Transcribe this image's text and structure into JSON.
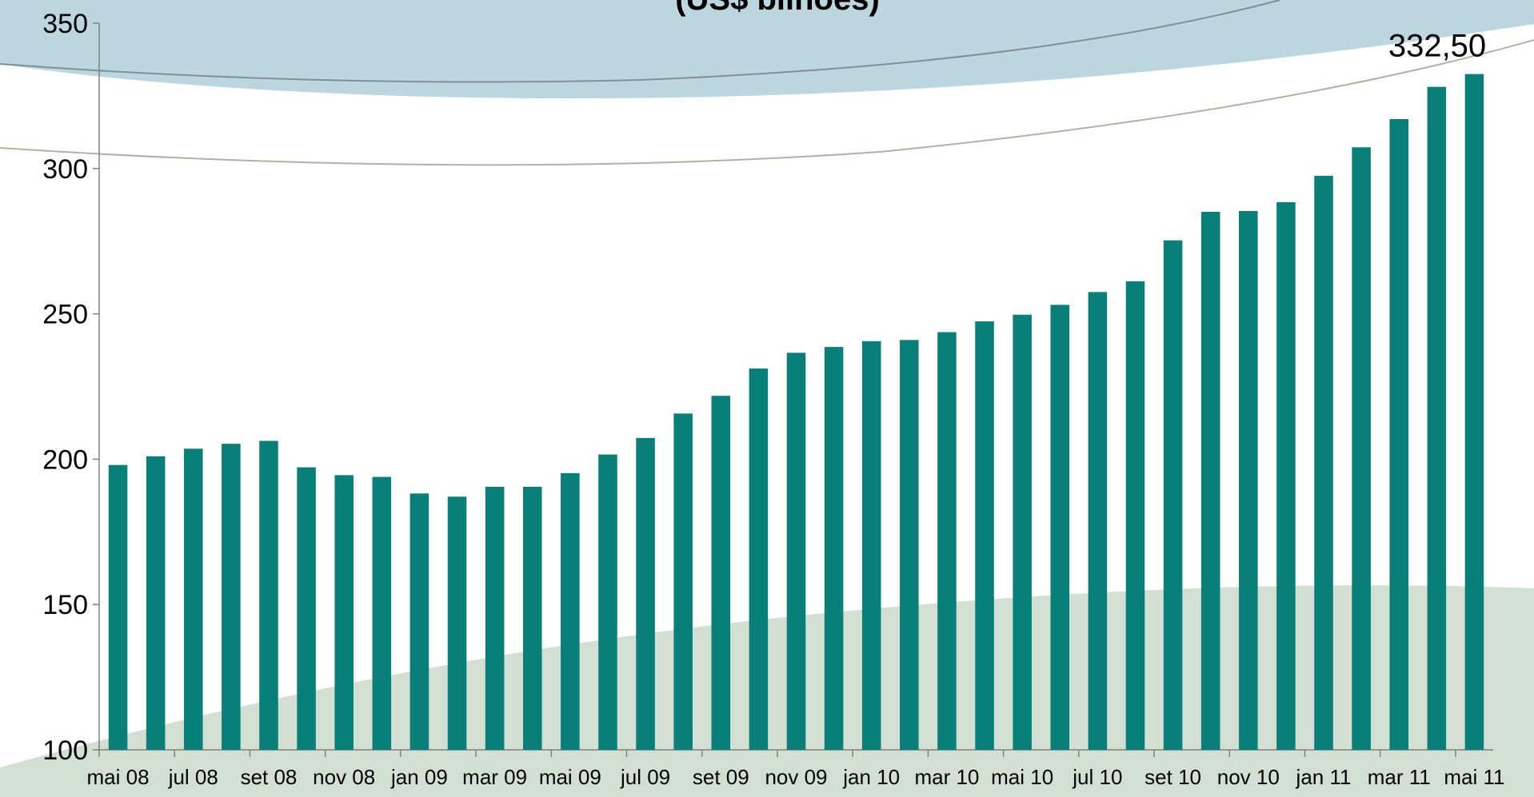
{
  "chart_data": {
    "type": "bar",
    "title": "(US$ bilhões)",
    "categories": [
      "mai 08",
      null,
      "jul 08",
      null,
      "set 08",
      null,
      "nov 08",
      null,
      "jan 09",
      null,
      "mar 09",
      null,
      "mai 09",
      null,
      "jul 09",
      null,
      "set 09",
      null,
      "nov 09",
      null,
      "jan 10",
      null,
      "mar 10",
      null,
      "mai 10",
      null,
      "jul 10",
      null,
      "set 10",
      null,
      "nov 10",
      null,
      "jan 11",
      null,
      "mar 11",
      null,
      "mai 11"
    ],
    "values": [
      198,
      201,
      203.6,
      205.3,
      206.3,
      197.2,
      194.5,
      193.9,
      188.2,
      187.1,
      190.5,
      190.5,
      195.2,
      201.6,
      207.3,
      215.7,
      221.8,
      231.2,
      236.6,
      238.6,
      240.6,
      241,
      243.7,
      247.4,
      249.7,
      253.1,
      257.5,
      261.2,
      275.3,
      285.1,
      285.4,
      288.4,
      297.5,
      307.3,
      317,
      328.1,
      332.5
    ],
    "value_labels": [
      null,
      null,
      null,
      null,
      null,
      null,
      null,
      null,
      null,
      null,
      null,
      null,
      null,
      null,
      null,
      null,
      null,
      null,
      null,
      null,
      null,
      null,
      null,
      null,
      null,
      null,
      null,
      null,
      null,
      null,
      null,
      null,
      null,
      null,
      null,
      null,
      "332,50"
    ],
    "color": "#088079",
    "ylim": [
      100,
      350
    ],
    "yticks": [
      100,
      150,
      200,
      250,
      300,
      350
    ],
    "grid": false
  }
}
